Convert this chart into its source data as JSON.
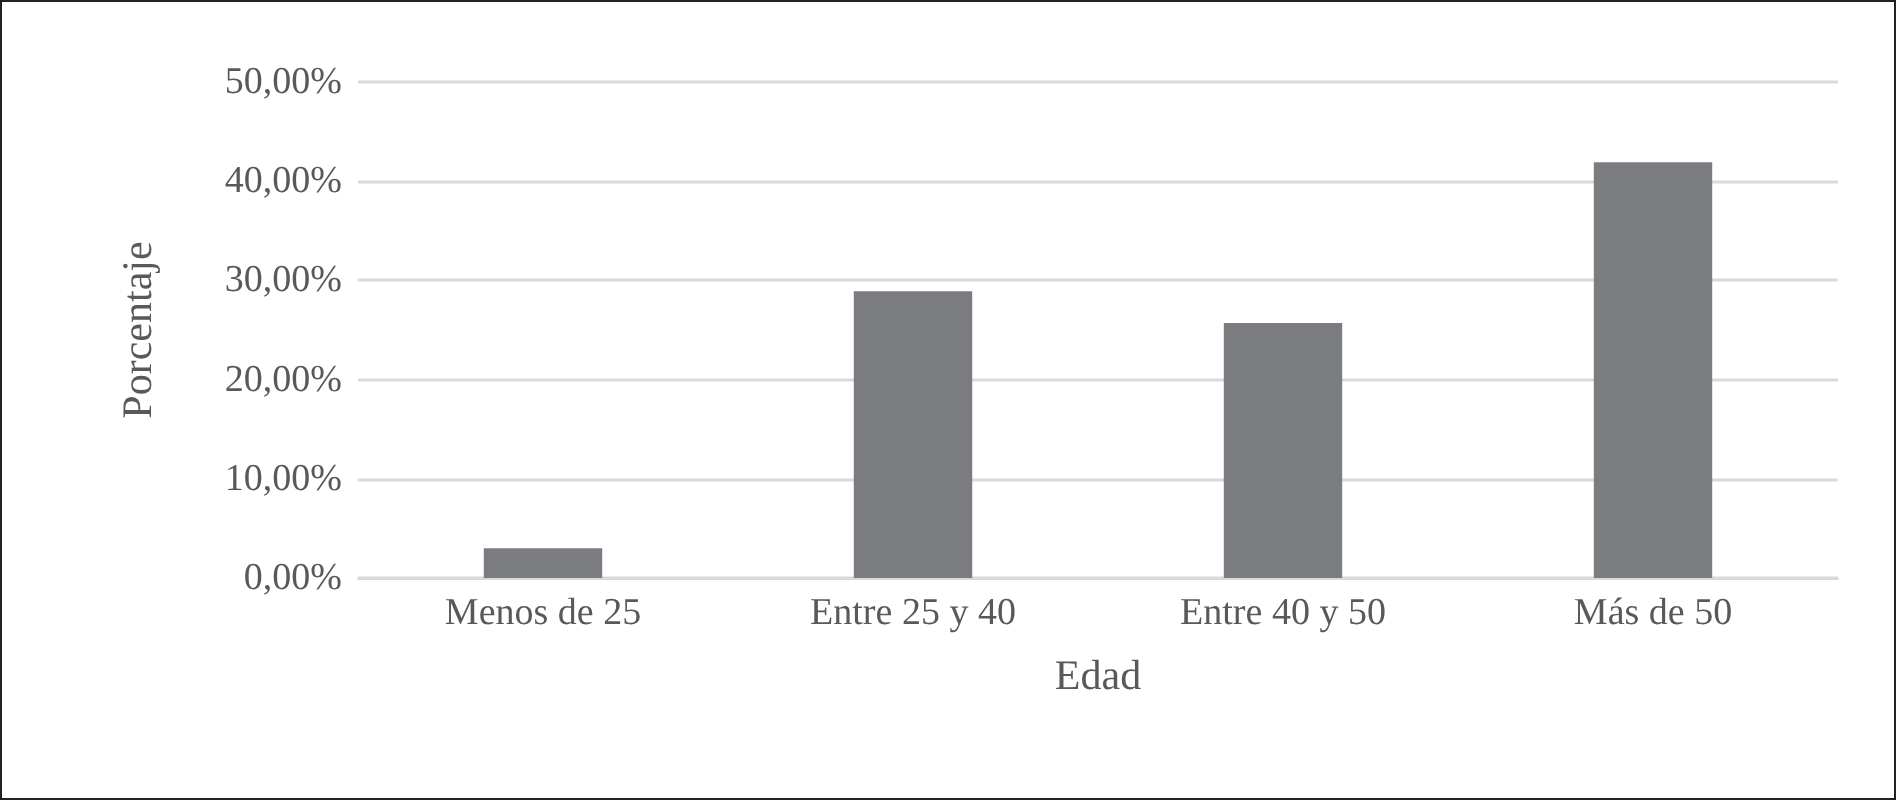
{
  "chart_data": {
    "type": "bar",
    "xlabel": "Edad",
    "ylabel": "Porcentaje",
    "categories": [
      "Menos de 25",
      "Entre 25 y 40",
      "Entre 40 y 50",
      "Más de 50"
    ],
    "values": [
      3.0,
      28.9,
      25.7,
      41.9
    ],
    "color": "#7b7c80",
    "ylim": [
      0,
      50
    ],
    "yticks": [
      {
        "value": 0,
        "label": "0,00%"
      },
      {
        "value": 10,
        "label": "10,00%"
      },
      {
        "value": 20,
        "label": "20,00%"
      },
      {
        "value": 30,
        "label": "30,00%"
      },
      {
        "value": 40,
        "label": "40,00%"
      },
      {
        "value": 50,
        "label": "50,00%"
      }
    ],
    "grid": "y"
  }
}
